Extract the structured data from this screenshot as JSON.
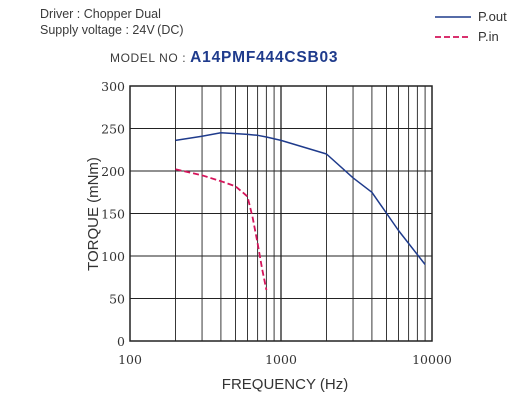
{
  "header": {
    "driver": "Driver : Chopper Dual",
    "supply": "Supply voltage : 24V (DC)"
  },
  "model": {
    "label": "MODEL NO : ",
    "value": "A14PMF444CSB03"
  },
  "colors": {
    "pout": "#1f3b8c",
    "pin": "#d4145a",
    "axis": "#222222",
    "text": "#333333"
  },
  "chart_data": {
    "type": "line",
    "xlabel": "FREQUENCY (Hz)",
    "ylabel": "TORQUE (mNm)",
    "x_scale": "log",
    "xlim": [
      100,
      10000
    ],
    "ylim": [
      0,
      300
    ],
    "x_ticks": [
      100,
      1000,
      10000
    ],
    "x_tick_labels": [
      "100",
      "1000",
      "10000"
    ],
    "y_ticks": [
      0,
      50,
      100,
      150,
      200,
      250,
      300
    ],
    "y_tick_labels": [
      "0",
      "50",
      "100",
      "150",
      "200",
      "250",
      "300"
    ],
    "grid": true,
    "legend": "top-right",
    "series": [
      {
        "name": "P.out",
        "style": "solid",
        "x": [
          200,
          300,
          400,
          500,
          600,
          700,
          800,
          1000,
          2000,
          3000,
          4000,
          6000,
          9000
        ],
        "y": [
          236,
          241,
          245,
          244,
          243,
          242,
          240,
          236,
          220,
          192,
          175,
          130,
          90
        ]
      },
      {
        "name": "P.in",
        "style": "dashed",
        "x": [
          200,
          300,
          400,
          500,
          600,
          650,
          700,
          750,
          800
        ],
        "y": [
          202,
          195,
          188,
          182,
          170,
          145,
          115,
          85,
          60
        ]
      }
    ]
  }
}
